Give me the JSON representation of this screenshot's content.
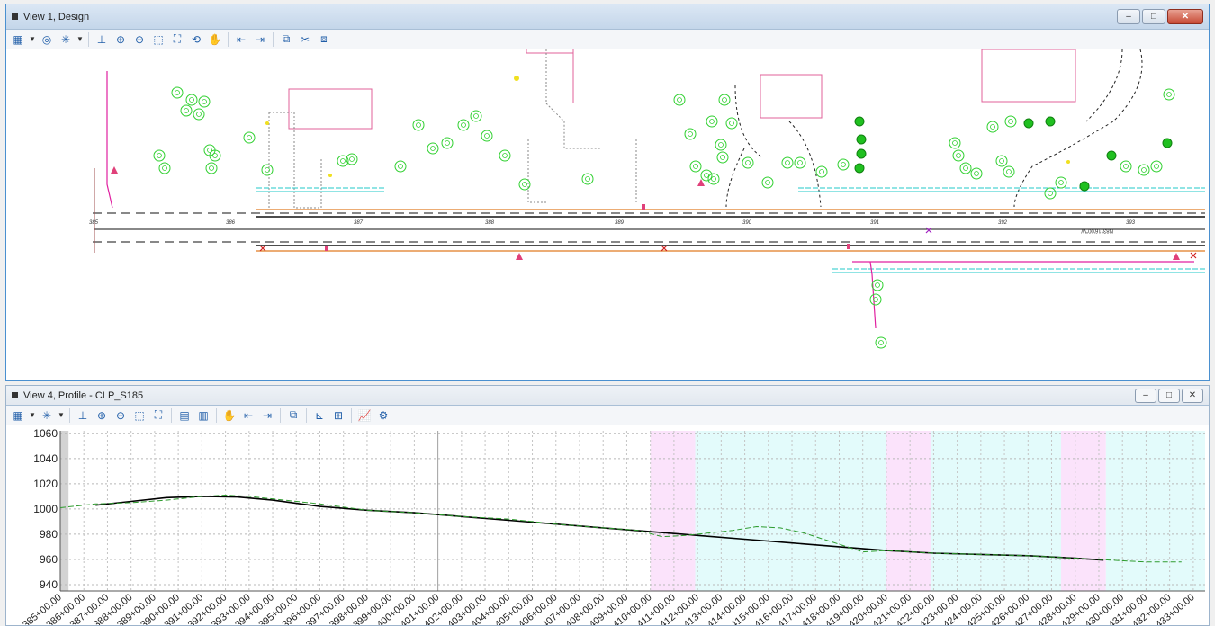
{
  "design_view": {
    "title": "View 1, Design",
    "stations": [
      "386",
      "387",
      "388",
      "389",
      "390",
      "391",
      "392",
      "393"
    ],
    "start_station": "385",
    "bearing_label": "N83°16'00\"W"
  },
  "profile_view": {
    "title": "View 4, Profile - CLP_S185"
  },
  "window_buttons": {
    "minimize": "–",
    "maximize": "□",
    "close": "✕"
  },
  "chart_data": {
    "type": "line",
    "x": [
      "385+00.00",
      "386+00.00",
      "387+00.00",
      "388+00.00",
      "389+00.00",
      "390+00.00",
      "391+00.00",
      "392+00.00",
      "393+00.00",
      "394+00.00",
      "395+00.00",
      "396+00.00",
      "397+00.00",
      "398+00.00",
      "399+00.00",
      "400+00.00",
      "401+00.00",
      "402+00.00",
      "403+00.00",
      "404+00.00",
      "405+00.00",
      "406+00.00",
      "407+00.00",
      "408+00.00",
      "409+00.00",
      "410+00.00",
      "411+00.00",
      "412+00.00",
      "413+00.00",
      "414+00.00",
      "415+00.00",
      "416+00.00",
      "417+00.00",
      "418+00.00",
      "419+00.00",
      "420+00.00",
      "421+00.00",
      "422+00.00",
      "423+00.00",
      "424+00.00",
      "425+00.00",
      "426+00.00",
      "427+00.00",
      "428+00.00",
      "429+00.00",
      "430+00.00",
      "431+00.00",
      "432+00.00",
      "433+00.00"
    ],
    "y_ticks": [
      940,
      960,
      980,
      1000,
      1020,
      1040,
      1060
    ],
    "ylim": [
      935,
      1062
    ],
    "series": [
      {
        "style": "solid",
        "color": "#000000",
        "points": [
          [
            386.5,
            1003
          ],
          [
            388,
            1006
          ],
          [
            389.5,
            1009
          ],
          [
            391,
            1010
          ],
          [
            392.5,
            1009.5
          ],
          [
            394,
            1007
          ],
          [
            396,
            1002
          ],
          [
            398,
            999
          ],
          [
            400,
            997
          ],
          [
            402,
            994
          ],
          [
            404,
            991
          ],
          [
            406,
            988
          ],
          [
            408,
            985
          ],
          [
            410,
            982
          ],
          [
            412,
            979
          ],
          [
            414,
            976
          ],
          [
            416,
            973
          ],
          [
            418,
            970
          ],
          [
            420,
            967
          ],
          [
            422,
            965
          ],
          [
            424,
            964
          ],
          [
            426,
            963
          ],
          [
            428,
            961
          ],
          [
            429.2,
            959.5
          ]
        ]
      },
      {
        "style": "dashed",
        "color": "#2e9b2e",
        "points": [
          [
            385,
            1001
          ],
          [
            386.5,
            1004
          ],
          [
            388,
            1005
          ],
          [
            389.5,
            1007
          ],
          [
            391,
            1010
          ],
          [
            392,
            1011
          ],
          [
            393,
            1010
          ],
          [
            394.5,
            1007
          ],
          [
            396,
            1004
          ],
          [
            398,
            999
          ],
          [
            400,
            997
          ],
          [
            402,
            994
          ],
          [
            404,
            992
          ],
          [
            406,
            988
          ],
          [
            408,
            985
          ],
          [
            409.5,
            983
          ],
          [
            410.5,
            978
          ],
          [
            411.5,
            979
          ],
          [
            412.5,
            981
          ],
          [
            413.5,
            983
          ],
          [
            414.5,
            986
          ],
          [
            415.5,
            985
          ],
          [
            416.5,
            981
          ],
          [
            418,
            972
          ],
          [
            419,
            966
          ],
          [
            420,
            967
          ],
          [
            422,
            965
          ],
          [
            424,
            964
          ],
          [
            426,
            963
          ],
          [
            428,
            961
          ],
          [
            429.5,
            959.5
          ],
          [
            431,
            958
          ],
          [
            432.5,
            958
          ]
        ]
      }
    ],
    "shaded_ranges": [
      {
        "from": 385,
        "to": 385.35,
        "color": "#d3d3d3"
      },
      {
        "from": 410.0,
        "to": 411.9,
        "color": "#fbe3fb"
      },
      {
        "from": 411.9,
        "to": 420.0,
        "color": "#e3fbfb"
      },
      {
        "from": 420.0,
        "to": 421.9,
        "color": "#fbe3fb"
      },
      {
        "from": 421.9,
        "to": 427.4,
        "color": "#e3fbfb"
      },
      {
        "from": 427.4,
        "to": 429.3,
        "color": "#fbe3fb"
      },
      {
        "from": 429.3,
        "to": 433.5,
        "color": "#e3fbfb"
      }
    ]
  }
}
